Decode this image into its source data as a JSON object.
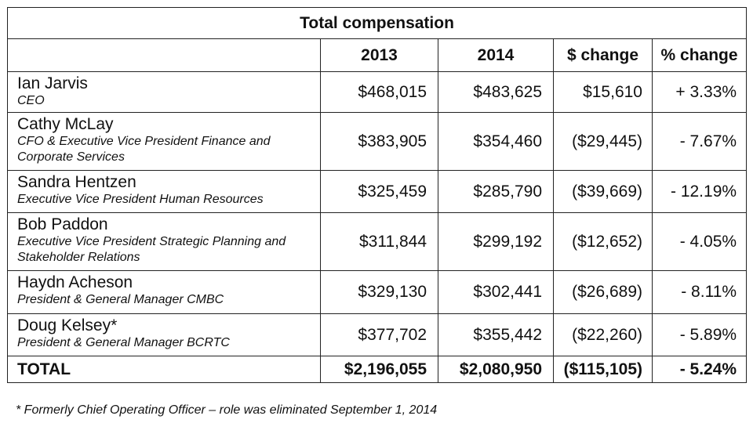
{
  "table": {
    "title": "Total compensation",
    "headers": [
      "",
      "2013",
      "2014",
      "$ change",
      "% change"
    ],
    "rows": [
      {
        "name": "Ian Jarvis",
        "role": "CEO",
        "y2013": "$468,015",
        "y2014": "$483,625",
        "change": "$15,610",
        "pct": "+ 3.33%"
      },
      {
        "name": "Cathy McLay",
        "role": "CFO & Executive Vice President Finance and Corporate Services",
        "y2013": "$383,905",
        "y2014": "$354,460",
        "change": "($29,445)",
        "pct": "- 7.67%"
      },
      {
        "name": "Sandra Hentzen",
        "role": "Executive Vice President Human Resources",
        "y2013": "$325,459",
        "y2014": "$285,790",
        "change": "($39,669)",
        "pct": "- 12.19%"
      },
      {
        "name": "Bob Paddon",
        "role": "Executive Vice President Strategic Planning and Stakeholder Relations",
        "y2013": "$311,844",
        "y2014": "$299,192",
        "change": "($12,652)",
        "pct": "- 4.05%"
      },
      {
        "name": "Haydn Acheson",
        "role": "President & General Manager CMBC",
        "y2013": "$329,130",
        "y2014": "$302,441",
        "change": "($26,689)",
        "pct": "- 8.11%"
      },
      {
        "name": "Doug Kelsey*",
        "role": "President & General Manager BCRTC",
        "y2013": "$377,702",
        "y2014": "$355,442",
        "change": "($22,260)",
        "pct": "- 5.89%"
      }
    ],
    "total": {
      "label": "TOTAL",
      "y2013": "$2,196,055",
      "y2014": "$2,080,950",
      "change": "($115,105)",
      "pct": "- 5.24%"
    }
  },
  "footnote": "* Formerly Chief Operating Officer – role was eliminated September 1, 2014"
}
